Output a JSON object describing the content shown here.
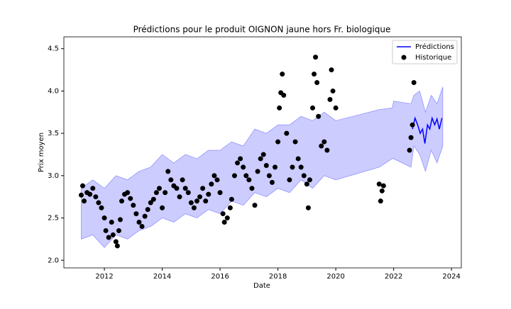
{
  "chart_data": {
    "type": "forecast",
    "title": "Prédictions pour le produit OIGNON jaune hors Fr. biologique",
    "x_label": "Date",
    "y_label": "Prix moyen",
    "xlim": [
      2010.6,
      2024.34
    ],
    "ylim": [
      1.91,
      4.64
    ],
    "xticks": [
      2012,
      2014,
      2016,
      2018,
      2020,
      2022,
      2024
    ],
    "yticks": [
      {
        "value": 2.0,
        "label": "2.0"
      },
      2.5,
      {
        "value": 3.0,
        "label": "3.0"
      },
      3.5,
      {
        "value": 4.0,
        "label": "4.0"
      },
      4.5
    ],
    "legend": "upper right",
    "band": {
      "color": "#0000ff",
      "x": [
        2011.2,
        2011.6,
        2012.0,
        2012.4,
        2012.8,
        2013.2,
        2013.6,
        2014.0,
        2014.4,
        2014.8,
        2015.2,
        2015.6,
        2016.0,
        2016.4,
        2016.8,
        2017.2,
        2017.6,
        2018.0,
        2018.4,
        2018.8,
        2019.2,
        2019.6,
        2020.0,
        2021.5,
        2021.95,
        2022.0,
        2022.6,
        2022.7,
        2022.9,
        2023.1,
        2023.3,
        2023.5,
        2023.7
      ],
      "lower": [
        2.25,
        2.3,
        2.15,
        2.3,
        2.25,
        2.35,
        2.4,
        2.5,
        2.45,
        2.55,
        2.5,
        2.6,
        2.55,
        2.7,
        2.65,
        2.8,
        2.75,
        2.85,
        2.8,
        2.95,
        2.85,
        3.0,
        2.95,
        3.1,
        3.2,
        3.2,
        3.1,
        3.35,
        3.25,
        3.05,
        3.3,
        3.15,
        3.35
      ],
      "upper": [
        2.85,
        2.95,
        2.85,
        3.0,
        2.95,
        3.05,
        3.1,
        3.25,
        3.15,
        3.25,
        3.2,
        3.3,
        3.3,
        3.4,
        3.35,
        3.55,
        3.5,
        3.6,
        3.6,
        3.7,
        3.65,
        3.75,
        3.65,
        3.78,
        3.8,
        3.88,
        3.85,
        3.95,
        4.0,
        3.75,
        3.95,
        3.85,
        4.05
      ]
    },
    "series": [
      {
        "name": "Prédictions",
        "color": "#0000ff",
        "kind": "line",
        "x": [
          2022.65,
          2022.74,
          2022.83,
          2022.92,
          2023.0,
          2023.08,
          2023.17,
          2023.25,
          2023.33,
          2023.42,
          2023.5,
          2023.58,
          2023.67
        ],
        "values": [
          3.55,
          3.68,
          3.6,
          3.5,
          3.55,
          3.38,
          3.6,
          3.55,
          3.68,
          3.6,
          3.67,
          3.55,
          3.68
        ]
      },
      {
        "name": "Historique",
        "color": "#000000",
        "kind": "scatter",
        "x": [
          2011.2,
          2011.25,
          2011.3,
          2011.4,
          2011.5,
          2011.6,
          2011.7,
          2011.8,
          2011.9,
          2012.0,
          2012.05,
          2012.15,
          2012.25,
          2012.3,
          2012.4,
          2012.45,
          2012.5,
          2012.55,
          2012.6,
          2012.7,
          2012.8,
          2012.9,
          2013.0,
          2013.1,
          2013.2,
          2013.3,
          2013.4,
          2013.5,
          2013.6,
          2013.7,
          2013.8,
          2013.9,
          2014.0,
          2014.1,
          2014.2,
          2014.3,
          2014.4,
          2014.5,
          2014.6,
          2014.7,
          2014.8,
          2014.9,
          2015.0,
          2015.1,
          2015.2,
          2015.3,
          2015.4,
          2015.5,
          2015.6,
          2015.7,
          2015.8,
          2015.9,
          2016.0,
          2016.1,
          2016.15,
          2016.25,
          2016.35,
          2016.4,
          2016.5,
          2016.6,
          2016.7,
          2016.8,
          2016.9,
          2017.0,
          2017.1,
          2017.2,
          2017.3,
          2017.4,
          2017.5,
          2017.6,
          2017.7,
          2017.8,
          2017.9,
          2018.0,
          2018.05,
          2018.1,
          2018.15,
          2018.2,
          2018.3,
          2018.4,
          2018.5,
          2018.6,
          2018.7,
          2018.8,
          2018.9,
          2019.0,
          2019.05,
          2019.1,
          2019.2,
          2019.25,
          2019.3,
          2019.35,
          2019.4,
          2019.5,
          2019.6,
          2019.7,
          2019.8,
          2019.85,
          2019.9,
          2020.0,
          2021.5,
          2021.55,
          2021.6,
          2021.65,
          2022.55,
          2022.6,
          2022.65,
          2022.7
        ],
        "values": [
          2.77,
          2.88,
          2.7,
          2.8,
          2.78,
          2.85,
          2.75,
          2.68,
          2.62,
          2.5,
          2.35,
          2.27,
          2.45,
          2.3,
          2.22,
          2.17,
          2.35,
          2.48,
          2.7,
          2.78,
          2.8,
          2.73,
          2.65,
          2.55,
          2.45,
          2.4,
          2.52,
          2.6,
          2.68,
          2.72,
          2.8,
          2.85,
          2.62,
          2.8,
          3.05,
          2.95,
          2.88,
          2.85,
          2.75,
          2.95,
          2.85,
          2.8,
          2.68,
          2.62,
          2.7,
          2.75,
          2.85,
          2.7,
          2.78,
          2.9,
          3.0,
          2.95,
          2.8,
          2.55,
          2.45,
          2.5,
          2.62,
          2.72,
          3.0,
          3.15,
          3.2,
          3.1,
          3.0,
          2.95,
          2.85,
          2.65,
          3.05,
          3.2,
          3.25,
          3.12,
          3.0,
          2.92,
          3.1,
          3.4,
          3.8,
          3.98,
          4.2,
          3.95,
          3.5,
          2.95,
          3.1,
          3.4,
          3.2,
          3.1,
          3.0,
          2.9,
          2.62,
          2.95,
          3.8,
          4.2,
          4.4,
          4.1,
          3.7,
          3.35,
          3.4,
          3.3,
          3.9,
          4.25,
          4.0,
          3.8,
          2.9,
          2.7,
          2.82,
          2.88,
          3.3,
          3.45,
          3.6,
          4.1
        ]
      }
    ]
  }
}
